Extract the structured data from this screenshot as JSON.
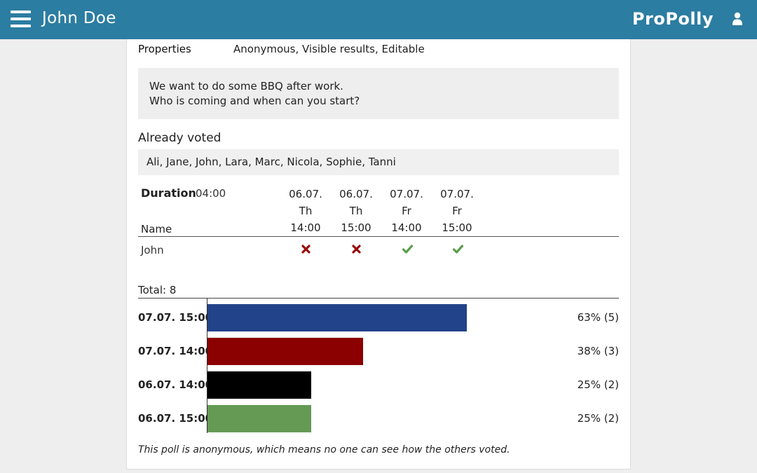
{
  "header": {
    "user_name": "John Doe",
    "brand": "ProPolly",
    "menu_icon": "hamburger-menu-icon",
    "user_icon": "user-icon"
  },
  "properties": {
    "label": "Properties",
    "value": "Anonymous, Visible results, Editable"
  },
  "description": {
    "line1": "We want to do some BBQ after work.",
    "line2": "Who is coming and when can you start?"
  },
  "already_voted": {
    "title": "Already voted",
    "names": "Ali, Jane, John, Lara, Marc, Nicola, Sophie, Tanni"
  },
  "vote_table": {
    "duration_label": "Duration",
    "duration_value": "04:00",
    "name_header": "Name",
    "columns": [
      {
        "date": "06.07.",
        "day": "Th",
        "time": "14:00"
      },
      {
        "date": "06.07.",
        "day": "Th",
        "time": "15:00"
      },
      {
        "date": "07.07.",
        "day": "Fr",
        "time": "14:00"
      },
      {
        "date": "07.07.",
        "day": "Fr",
        "time": "15:00"
      }
    ],
    "rows": [
      {
        "name": "John",
        "votes": [
          "no",
          "no",
          "yes",
          "yes"
        ]
      }
    ],
    "yes_icon": "check-icon",
    "no_icon": "cross-icon",
    "yes_color": "#5a9e4a",
    "no_color": "#9a0c0c"
  },
  "results": {
    "total_label": "Total: 8"
  },
  "chart_data": {
    "type": "bar",
    "orientation": "horizontal",
    "total": 8,
    "categories": [
      "07.07. 15:00",
      "07.07. 14:00",
      "06.07. 14:00",
      "06.07. 15:00"
    ],
    "values": [
      5,
      3,
      2,
      2
    ],
    "percent_labels": [
      "63% (5)",
      "38% (3)",
      "25% (2)",
      "25% (2)"
    ],
    "colors": [
      "#22428a",
      "#8b0000",
      "#000000",
      "#649a54"
    ],
    "xlim": [
      0,
      8
    ]
  },
  "footnote": "This poll is anonymous, which means no one can see how the others voted."
}
